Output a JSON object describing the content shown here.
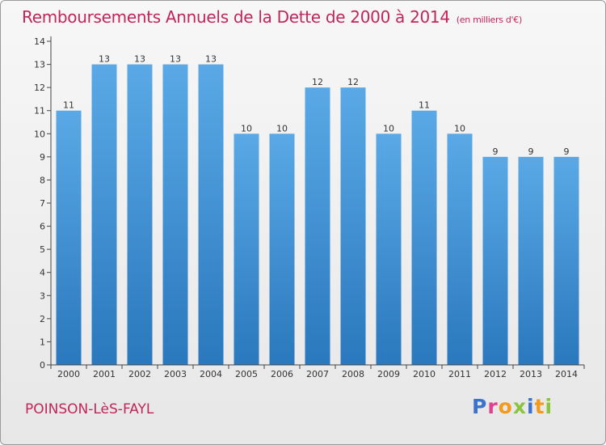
{
  "title": "Remboursements Annuels de la Dette de 2000 à 2014",
  "unit_note": "(en milliers d'€)",
  "commune": "POINSON-LèS-FAYL",
  "logo": {
    "text": "Proxiti",
    "letter_colors": [
      "#3a73c9",
      "#e0408e",
      "#f29a1c",
      "#8ac43f",
      "#3a73c9",
      "#f29a1c",
      "#8ac43f"
    ]
  },
  "colors": {
    "title": "#c0255b",
    "bar_top": "#5aa9e6",
    "bar_bottom": "#2a78bd",
    "axis": "#444444",
    "tick_text": "#333333"
  },
  "chart_data": {
    "type": "bar",
    "title": "Remboursements Annuels de la Dette de 2000 à 2014",
    "subtitle": "(en milliers d'€)",
    "xlabel": "",
    "ylabel": "",
    "categories": [
      "2000",
      "2001",
      "2002",
      "2003",
      "2004",
      "2005",
      "2006",
      "2007",
      "2008",
      "2009",
      "2010",
      "2011",
      "2012",
      "2013",
      "2014"
    ],
    "values": [
      11,
      13,
      13,
      13,
      13,
      10,
      10,
      12,
      12,
      10,
      11,
      10,
      9,
      9,
      9
    ],
    "ylim": [
      0,
      14
    ],
    "y_ticks": [
      0,
      1,
      2,
      3,
      4,
      5,
      6,
      7,
      8,
      9,
      10,
      11,
      12,
      13,
      14
    ],
    "data_labels": true,
    "grid": false,
    "legend": "none"
  }
}
